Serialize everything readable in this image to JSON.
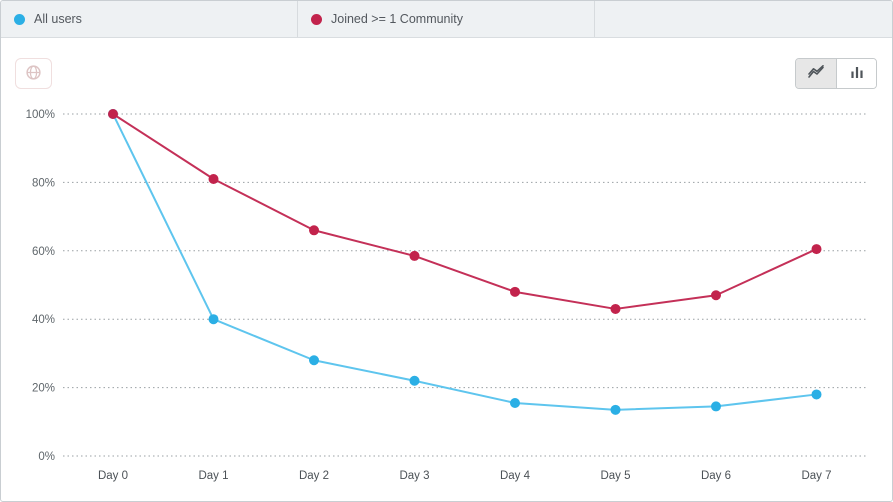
{
  "legend": {
    "items": [
      {
        "label": "All users",
        "color": "#2bafe5"
      },
      {
        "label": "Joined >= 1 Community",
        "color": "#c2234c"
      }
    ]
  },
  "toolbar": {
    "globe_button": {
      "icon": "globe-icon",
      "disabled": true
    },
    "view_toggle": {
      "options": [
        "line",
        "bar"
      ],
      "selected": "line"
    }
  },
  "chart_data": {
    "type": "line",
    "x": [
      "Day 0",
      "Day 1",
      "Day 2",
      "Day 3",
      "Day 4",
      "Day 5",
      "Day 6",
      "Day 7"
    ],
    "series": [
      {
        "name": "All users",
        "color": "#2bafe5",
        "line_color": "#5ec5ee",
        "values": [
          100,
          40,
          28,
          22,
          15.5,
          13.5,
          14.5,
          18
        ]
      },
      {
        "name": "Joined >= 1 Community",
        "color": "#c2234c",
        "line_color": "#c43058",
        "values": [
          100,
          81,
          66,
          58.5,
          48,
          43,
          47,
          60.5
        ]
      }
    ],
    "yticks": [
      100,
      80,
      60,
      40,
      20,
      0
    ],
    "ytick_labels": [
      "100%",
      "80%",
      "60%",
      "40%",
      "20%",
      "0%"
    ],
    "ylim": [
      0,
      100
    ],
    "grid": "horizontal-dotted",
    "legend_position": "top",
    "title": ""
  }
}
